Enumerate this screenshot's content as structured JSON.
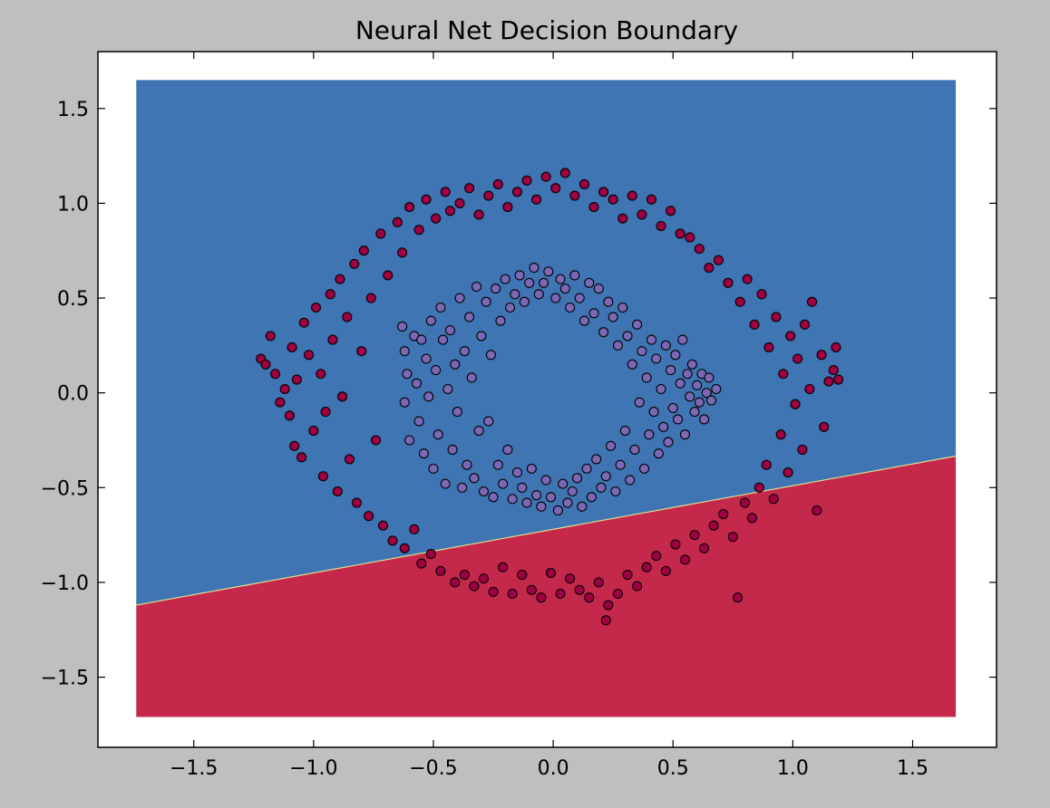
{
  "chart_data": {
    "type": "scatter",
    "title": "Neural Net Decision Boundary",
    "xlabel": "",
    "ylabel": "",
    "xlim": [
      -1.9,
      1.85
    ],
    "ylim": [
      -1.87,
      1.8
    ],
    "xticks": [
      -1.5,
      -1.0,
      -0.5,
      0.0,
      0.5,
      1.0,
      1.5
    ],
    "xtick_labels": [
      "−1.5",
      "−1.0",
      "−0.5",
      "0.0",
      "0.5",
      "1.0",
      "1.5"
    ],
    "yticks": [
      1.5,
      1.0,
      0.5,
      0.0,
      -0.5,
      -1.0,
      -1.5
    ],
    "ytick_labels": [
      "1.5",
      "1.0",
      "0.5",
      "0.0",
      "−0.5",
      "−1.0",
      "−1.5"
    ],
    "grid": false,
    "background_color": "#bfbfbf",
    "plot_background": "#ffffff",
    "region": {
      "xrange": [
        -1.74,
        1.68
      ],
      "yrange": [
        -1.71,
        1.65
      ],
      "boundary_line": {
        "slope": 0.23,
        "intercept": -0.72
      },
      "class_above_color": "#3e75b2",
      "class_below_color": "#c4284a",
      "boundary_color": "#e0e090"
    },
    "series": [
      {
        "class": 0,
        "color": "#9e0142",
        "description": "outer ring",
        "points": [
          [
            -1.22,
            0.18
          ],
          [
            -1.2,
            0.15
          ],
          [
            -1.18,
            0.3
          ],
          [
            -1.16,
            0.1
          ],
          [
            -1.14,
            -0.05
          ],
          [
            -1.12,
            0.02
          ],
          [
            -1.1,
            -0.12
          ],
          [
            -1.09,
            0.24
          ],
          [
            -1.08,
            -0.28
          ],
          [
            -1.07,
            0.07
          ],
          [
            -1.05,
            -0.34
          ],
          [
            -1.04,
            0.37
          ],
          [
            -1.02,
            0.2
          ],
          [
            -1.0,
            -0.2
          ],
          [
            -0.99,
            0.45
          ],
          [
            -0.97,
            0.1
          ],
          [
            -0.96,
            -0.44
          ],
          [
            -0.95,
            -0.1
          ],
          [
            -0.93,
            0.52
          ],
          [
            -0.92,
            0.28
          ],
          [
            -0.9,
            -0.52
          ],
          [
            -0.89,
            0.6
          ],
          [
            -0.88,
            -0.02
          ],
          [
            -0.86,
            0.4
          ],
          [
            -0.85,
            -0.35
          ],
          [
            -0.83,
            0.68
          ],
          [
            -0.82,
            -0.58
          ],
          [
            -0.8,
            0.22
          ],
          [
            -0.79,
            0.75
          ],
          [
            -0.77,
            -0.65
          ],
          [
            -0.76,
            0.5
          ],
          [
            -0.74,
            -0.25
          ],
          [
            -0.72,
            0.84
          ],
          [
            -0.71,
            -0.7
          ],
          [
            -0.69,
            0.62
          ],
          [
            -0.67,
            -0.78
          ],
          [
            -0.65,
            0.9
          ],
          [
            -0.63,
            0.74
          ],
          [
            -0.62,
            -0.82
          ],
          [
            -0.6,
            0.98
          ],
          [
            -0.58,
            -0.72
          ],
          [
            -0.56,
            0.86
          ],
          [
            -0.55,
            -0.9
          ],
          [
            -0.53,
            1.02
          ],
          [
            -0.51,
            -0.85
          ],
          [
            -0.49,
            0.92
          ],
          [
            -0.47,
            -0.94
          ],
          [
            -0.45,
            1.06
          ],
          [
            -0.43,
            0.96
          ],
          [
            -0.41,
            -1.0
          ],
          [
            -0.39,
            1.0
          ],
          [
            -0.37,
            -0.96
          ],
          [
            -0.35,
            1.08
          ],
          [
            -0.33,
            -1.02
          ],
          [
            -0.31,
            0.94
          ],
          [
            -0.29,
            -0.98
          ],
          [
            -0.27,
            1.04
          ],
          [
            -0.25,
            -1.05
          ],
          [
            -0.23,
            1.1
          ],
          [
            -0.21,
            -0.92
          ],
          [
            -0.19,
            0.98
          ],
          [
            -0.17,
            -1.06
          ],
          [
            -0.15,
            1.06
          ],
          [
            -0.13,
            -0.96
          ],
          [
            -0.11,
            1.12
          ],
          [
            -0.09,
            -1.04
          ],
          [
            -0.07,
            1.02
          ],
          [
            -0.05,
            -1.08
          ],
          [
            -0.03,
            1.14
          ],
          [
            -0.01,
            -0.95
          ],
          [
            0.01,
            1.08
          ],
          [
            0.03,
            -1.06
          ],
          [
            0.05,
            1.16
          ],
          [
            0.07,
            -0.98
          ],
          [
            0.09,
            1.04
          ],
          [
            0.11,
            -1.04
          ],
          [
            0.13,
            1.1
          ],
          [
            0.15,
            -1.08
          ],
          [
            0.17,
            0.98
          ],
          [
            0.19,
            -1.0
          ],
          [
            0.21,
            1.06
          ],
          [
            0.22,
            -1.2
          ],
          [
            0.23,
            -1.12
          ],
          [
            0.25,
            1.02
          ],
          [
            0.27,
            -1.06
          ],
          [
            0.29,
            0.92
          ],
          [
            0.31,
            -0.96
          ],
          [
            0.33,
            1.04
          ],
          [
            0.35,
            -1.02
          ],
          [
            0.37,
            0.94
          ],
          [
            0.39,
            -0.92
          ],
          [
            0.41,
            1.02
          ],
          [
            0.43,
            -0.86
          ],
          [
            0.45,
            0.88
          ],
          [
            0.47,
            -0.94
          ],
          [
            0.49,
            0.96
          ],
          [
            0.51,
            -0.8
          ],
          [
            0.53,
            0.84
          ],
          [
            0.55,
            -0.88
          ],
          [
            0.57,
            0.82
          ],
          [
            0.59,
            -0.75
          ],
          [
            0.61,
            0.76
          ],
          [
            0.63,
            -0.82
          ],
          [
            0.65,
            0.66
          ],
          [
            0.67,
            -0.7
          ],
          [
            0.69,
            0.7
          ],
          [
            0.71,
            -0.64
          ],
          [
            0.73,
            0.58
          ],
          [
            0.75,
            -0.76
          ],
          [
            0.77,
            -1.08
          ],
          [
            0.78,
            0.48
          ],
          [
            0.8,
            -0.58
          ],
          [
            0.81,
            0.6
          ],
          [
            0.83,
            -0.66
          ],
          [
            0.84,
            0.36
          ],
          [
            0.86,
            -0.5
          ],
          [
            0.87,
            0.52
          ],
          [
            0.89,
            -0.38
          ],
          [
            0.9,
            0.24
          ],
          [
            0.92,
            -0.56
          ],
          [
            0.93,
            0.4
          ],
          [
            0.95,
            -0.22
          ],
          [
            0.96,
            0.1
          ],
          [
            0.98,
            -0.42
          ],
          [
            0.99,
            0.3
          ],
          [
            1.01,
            -0.06
          ],
          [
            1.02,
            0.18
          ],
          [
            1.04,
            -0.3
          ],
          [
            1.05,
            0.36
          ],
          [
            1.07,
            0.02
          ],
          [
            1.08,
            0.48
          ],
          [
            1.1,
            -0.62
          ],
          [
            1.12,
            0.2
          ],
          [
            1.13,
            -0.18
          ],
          [
            1.15,
            0.06
          ],
          [
            1.17,
            0.12
          ],
          [
            1.18,
            0.24
          ],
          [
            1.19,
            0.07
          ]
        ]
      },
      {
        "class": 1,
        "color": "#7b68b5",
        "description": "inner ring",
        "points": [
          [
            -0.63,
            0.35
          ],
          [
            -0.62,
            0.22
          ],
          [
            -0.62,
            -0.05
          ],
          [
            -0.61,
            0.1
          ],
          [
            -0.6,
            -0.25
          ],
          [
            -0.58,
            0.3
          ],
          [
            -0.57,
            0.05
          ],
          [
            -0.56,
            -0.15
          ],
          [
            -0.55,
            0.28
          ],
          [
            -0.54,
            -0.32
          ],
          [
            -0.53,
            0.18
          ],
          [
            -0.52,
            -0.02
          ],
          [
            -0.51,
            0.38
          ],
          [
            -0.5,
            -0.4
          ],
          [
            -0.49,
            0.12
          ],
          [
            -0.48,
            -0.22
          ],
          [
            -0.47,
            0.45
          ],
          [
            -0.46,
            0.28
          ],
          [
            -0.45,
            -0.48
          ],
          [
            -0.44,
            0.02
          ],
          [
            -0.43,
            0.33
          ],
          [
            -0.42,
            -0.3
          ],
          [
            -0.41,
            0.15
          ],
          [
            -0.4,
            -0.1
          ],
          [
            -0.39,
            0.5
          ],
          [
            -0.38,
            -0.5
          ],
          [
            -0.37,
            0.22
          ],
          [
            -0.36,
            -0.38
          ],
          [
            -0.35,
            0.4
          ],
          [
            -0.34,
            0.08
          ],
          [
            -0.33,
            -0.45
          ],
          [
            -0.32,
            0.56
          ],
          [
            -0.31,
            -0.2
          ],
          [
            -0.3,
            0.3
          ],
          [
            -0.29,
            -0.52
          ],
          [
            -0.28,
            0.48
          ],
          [
            -0.27,
            -0.15
          ],
          [
            -0.26,
            0.2
          ],
          [
            -0.25,
            -0.55
          ],
          [
            -0.24,
            0.55
          ],
          [
            -0.23,
            -0.38
          ],
          [
            -0.22,
            0.38
          ],
          [
            -0.21,
            -0.48
          ],
          [
            -0.2,
            0.6
          ],
          [
            -0.19,
            -0.3
          ],
          [
            -0.18,
            0.45
          ],
          [
            -0.17,
            -0.56
          ],
          [
            -0.16,
            0.52
          ],
          [
            -0.15,
            -0.42
          ],
          [
            -0.14,
            0.62
          ],
          [
            -0.13,
            -0.5
          ],
          [
            -0.12,
            0.48
          ],
          [
            -0.11,
            -0.58
          ],
          [
            -0.1,
            0.58
          ],
          [
            -0.09,
            -0.4
          ],
          [
            -0.08,
            0.66
          ],
          [
            -0.07,
            -0.54
          ],
          [
            -0.06,
            0.52
          ],
          [
            -0.05,
            -0.6
          ],
          [
            -0.04,
            0.58
          ],
          [
            -0.03,
            -0.46
          ],
          [
            -0.02,
            0.64
          ],
          [
            -0.01,
            -0.55
          ],
          [
            0.01,
            0.5
          ],
          [
            0.02,
            -0.62
          ],
          [
            0.03,
            0.6
          ],
          [
            0.04,
            -0.48
          ],
          [
            0.05,
            0.55
          ],
          [
            0.06,
            -0.58
          ],
          [
            0.07,
            0.45
          ],
          [
            0.08,
            -0.52
          ],
          [
            0.09,
            0.62
          ],
          [
            0.1,
            -0.45
          ],
          [
            0.11,
            0.5
          ],
          [
            0.12,
            -0.6
          ],
          [
            0.13,
            0.38
          ],
          [
            0.14,
            -0.4
          ],
          [
            0.15,
            0.58
          ],
          [
            0.16,
            -0.55
          ],
          [
            0.17,
            0.42
          ],
          [
            0.18,
            -0.35
          ],
          [
            0.19,
            0.55
          ],
          [
            0.2,
            -0.5
          ],
          [
            0.21,
            0.32
          ],
          [
            0.22,
            -0.44
          ],
          [
            0.23,
            0.48
          ],
          [
            0.24,
            -0.28
          ],
          [
            0.25,
            0.4
          ],
          [
            0.26,
            -0.52
          ],
          [
            0.27,
            0.25
          ],
          [
            0.28,
            -0.38
          ],
          [
            0.29,
            0.45
          ],
          [
            0.3,
            -0.2
          ],
          [
            0.31,
            0.3
          ],
          [
            0.32,
            -0.46
          ],
          [
            0.33,
            0.15
          ],
          [
            0.34,
            -0.3
          ],
          [
            0.35,
            0.36
          ],
          [
            0.36,
            -0.05
          ],
          [
            0.37,
            0.22
          ],
          [
            0.38,
            -0.4
          ],
          [
            0.39,
            0.08
          ],
          [
            0.4,
            -0.22
          ],
          [
            0.41,
            0.28
          ],
          [
            0.42,
            -0.1
          ],
          [
            0.43,
            0.18
          ],
          [
            0.44,
            -0.32
          ],
          [
            0.45,
            0.02
          ],
          [
            0.46,
            -0.18
          ],
          [
            0.47,
            0.25
          ],
          [
            0.48,
            -0.26
          ],
          [
            0.49,
            0.12
          ],
          [
            0.5,
            -0.08
          ],
          [
            0.51,
            0.2
          ],
          [
            0.52,
            -0.14
          ],
          [
            0.53,
            0.05
          ],
          [
            0.54,
            0.28
          ],
          [
            0.55,
            -0.22
          ],
          [
            0.56,
            0.1
          ],
          [
            0.57,
            -0.02
          ],
          [
            0.58,
            0.15
          ],
          [
            0.59,
            -0.1
          ],
          [
            0.6,
            0.04
          ],
          [
            0.61,
            -0.05
          ],
          [
            0.62,
            0.1
          ],
          [
            0.63,
            -0.14
          ],
          [
            0.64,
            0.0
          ],
          [
            0.65,
            0.08
          ],
          [
            0.66,
            -0.04
          ],
          [
            0.68,
            0.02
          ]
        ]
      }
    ]
  }
}
